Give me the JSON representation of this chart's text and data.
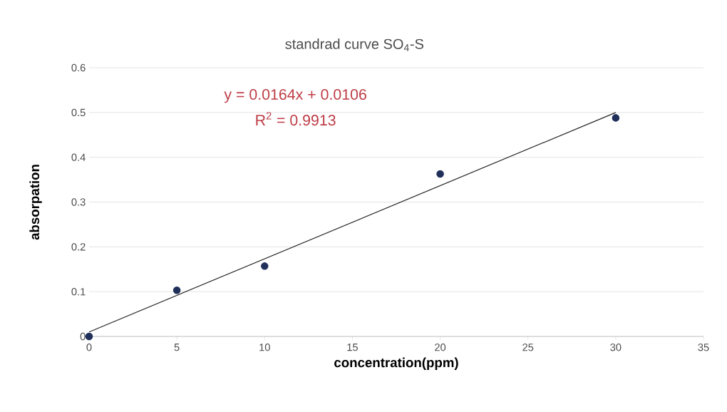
{
  "chart_data": {
    "type": "scatter",
    "title": "standrad curve SO$_{4}$-S",
    "xlabel": "concentration(ppm)",
    "ylabel": "absorpation",
    "annotations": [
      "y = 0.0164x + 0.0106",
      "R$^{2}$ = 0.9913"
    ],
    "series": [
      {
        "color": "#1f2f5a",
        "x": [
          0,
          5,
          10,
          20,
          30
        ],
        "values": [
          0,
          0.103,
          0.157,
          0.363,
          0.488
        ],
        "marker": "circle"
      },
      {
        "type": "line",
        "color": "#222222",
        "x": [
          0,
          30
        ],
        "values": [
          0.01,
          0.5
        ],
        "marker": "none",
        "line_style": "solid"
      }
    ],
    "xlim": [
      0,
      35
    ],
    "ylim": [
      0,
      0.6
    ],
    "xticks": [
      0,
      5,
      10,
      15,
      20,
      25,
      30,
      35
    ],
    "yticks": [
      0,
      0.1,
      0.2,
      0.3,
      0.4,
      0.5,
      0.6
    ],
    "grid": "y"
  }
}
